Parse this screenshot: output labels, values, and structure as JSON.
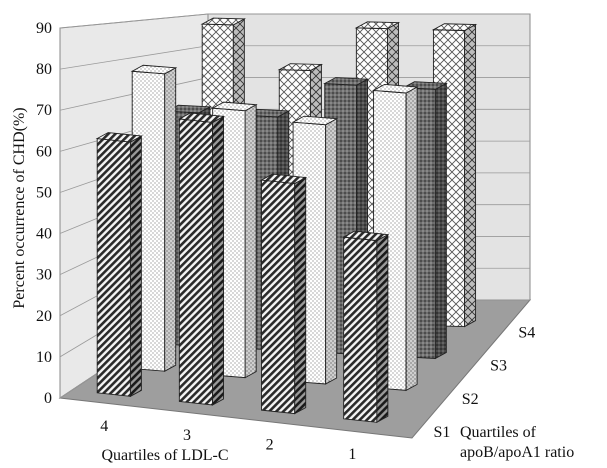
{
  "chart_data": {
    "type": "bar",
    "subtype": "3d-bar",
    "ylabel": "Percent occurrence of CHD(%)",
    "xlabel": "Quartiles of LDL-C",
    "zlabel": [
      "Quartiles of",
      "apoB/apoA1 ratio"
    ],
    "ylim": [
      0,
      90
    ],
    "yticks": [
      0,
      10,
      20,
      30,
      40,
      50,
      60,
      70,
      80,
      90
    ],
    "grid": true,
    "categories": [
      "4",
      "3",
      "2",
      "1"
    ],
    "series": [
      {
        "name": "S1",
        "values": [
          63,
          70,
          57,
          45
        ],
        "pattern": "diag-dense"
      },
      {
        "name": "S2",
        "values": [
          78,
          70,
          68,
          78
        ],
        "pattern": "dots"
      },
      {
        "name": "S3",
        "values": [
          65,
          65,
          75,
          75
        ],
        "pattern": "dark"
      },
      {
        "name": "S4",
        "values": [
          88,
          75,
          88,
          88
        ],
        "pattern": "cross"
      }
    ]
  }
}
